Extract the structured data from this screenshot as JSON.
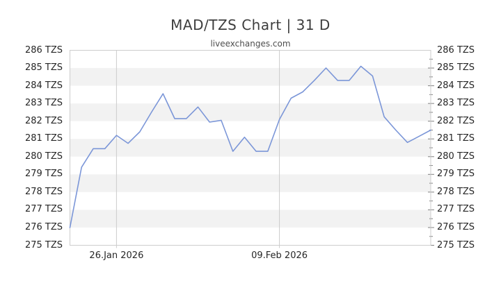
{
  "title": "MAD/TZS Chart | 31 D",
  "subtitle": "liveexchanges.com",
  "chart_data": {
    "type": "line",
    "title": "MAD/TZS Chart | 31 D",
    "watermark": "liveexchanges.com",
    "grid": "horizontal-stripes",
    "legend": "none",
    "series": [
      {
        "name": "MAD/TZS",
        "values": [
          276.0,
          279.4,
          280.45,
          280.45,
          281.2,
          280.75,
          281.4,
          282.5,
          283.55,
          282.15,
          282.15,
          282.8,
          281.95,
          282.05,
          280.3,
          281.1,
          280.3,
          280.3,
          282.1,
          283.3,
          283.65,
          284.3,
          285.0,
          284.3,
          284.3,
          285.1,
          284.55,
          282.25,
          281.5,
          280.8,
          281.15,
          281.5
        ]
      }
    ],
    "x_axis": {
      "labels": [
        {
          "index": 4,
          "label": "26.Jan 2026"
        },
        {
          "index": 18,
          "label": "09.Feb 2026"
        }
      ]
    },
    "y_axis": {
      "min": 275,
      "max": 286,
      "minor_tick_step": 0.5,
      "ticks": [
        {
          "value": 286,
          "label": "286 TZS"
        },
        {
          "value": 285,
          "label": "285 TZS"
        },
        {
          "value": 284,
          "label": "284 TZS"
        },
        {
          "value": 283,
          "label": "283 TZS"
        },
        {
          "value": 282,
          "label": "282 TZS"
        },
        {
          "value": 281,
          "label": "281 TZS"
        },
        {
          "value": 280,
          "label": "280 TZS"
        },
        {
          "value": 279,
          "label": "279 TZS"
        },
        {
          "value": 278,
          "label": "278 TZS"
        },
        {
          "value": 277,
          "label": "277 TZS"
        },
        {
          "value": 276,
          "label": "276 TZS"
        },
        {
          "value": 275,
          "label": "275 TZS"
        }
      ]
    },
    "colors": {
      "line": "#7b96d8",
      "stripe": "#f2f2f2",
      "band_alt": "#ffffff",
      "grid": "#cccccc",
      "plot_border": "#cccccc",
      "tick_mark": "#808080",
      "axis_text": "#262626",
      "title_text": "#3d3d3d",
      "subtitle_text": "#4d4d4d",
      "background": "#ffffff"
    }
  }
}
